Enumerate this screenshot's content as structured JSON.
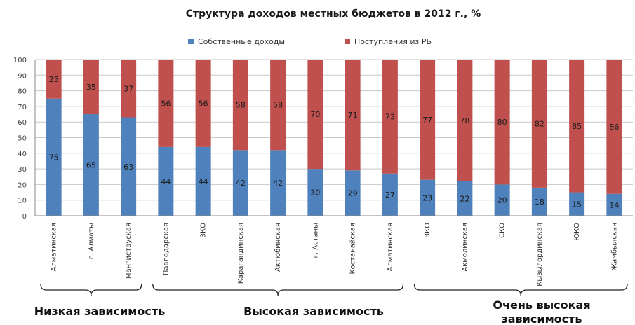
{
  "chart_data": {
    "type": "bar",
    "stacked": true,
    "title": "Структура доходов местных бюджетов в 2012 г., %",
    "categories": [
      "Алматинская",
      "г. Алматы",
      "Мангистауская",
      "Павлодарская",
      "ЗКО",
      "Карагандинская",
      "Актюбинская",
      "г. Астаны",
      "Костанайская",
      "Алматинская",
      "ВКО",
      "Акмолинская",
      "СКО",
      "Кызылординская",
      "ЮКО",
      "Жамбылская"
    ],
    "series": [
      {
        "name": "Собственные доходы",
        "color": "#4f81bd",
        "values": [
          75,
          65,
          63,
          44,
          44,
          42,
          42,
          30,
          29,
          27,
          23,
          22,
          20,
          18,
          15,
          14
        ]
      },
      {
        "name": "Поступления из РБ",
        "color": "#c0504d",
        "values": [
          25,
          35,
          37,
          56,
          56,
          58,
          58,
          70,
          71,
          73,
          77,
          78,
          80,
          82,
          85,
          86
        ]
      }
    ],
    "ylim": [
      0,
      100
    ],
    "yticks": [
      0,
      10,
      20,
      30,
      40,
      50,
      60,
      70,
      80,
      90,
      100
    ],
    "grid": true,
    "legend": "top",
    "groups": [
      {
        "label": "Низкая зависимость",
        "from": 0,
        "to": 2
      },
      {
        "label": "Высокая зависимость",
        "from": 3,
        "to": 9
      },
      {
        "label": "Очень высокая зависимость",
        "from": 10,
        "to": 15
      }
    ]
  }
}
